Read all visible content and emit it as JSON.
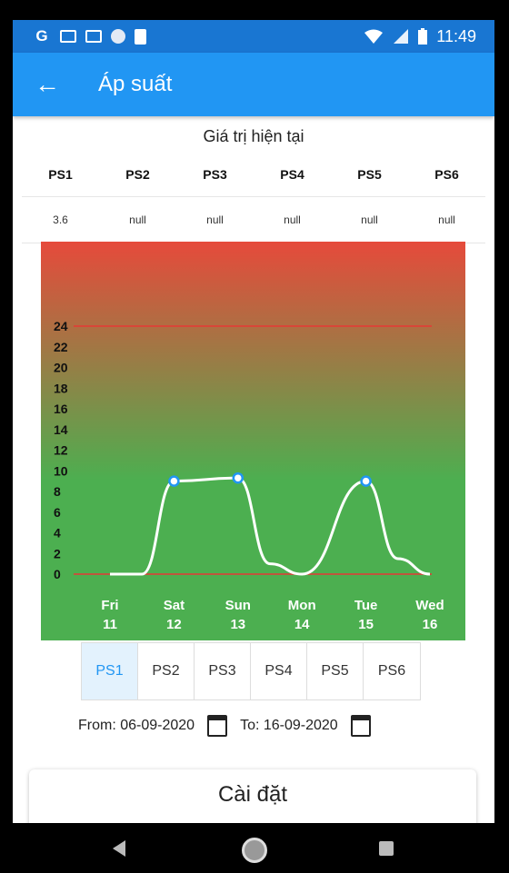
{
  "status_bar": {
    "time": "11:49",
    "icons": [
      "g-icon",
      "gmail-icon",
      "gmail-icon",
      "circle-icon",
      "sd-card-icon",
      "wifi-icon",
      "signal-icon",
      "battery-icon"
    ]
  },
  "app_bar": {
    "title": "Áp suất",
    "back_icon": "arrow-left-icon"
  },
  "current": {
    "title": "Giá trị hiện tại",
    "sensors": [
      "PS1",
      "PS2",
      "PS3",
      "PS4",
      "PS5",
      "PS6"
    ],
    "values": [
      "3.6",
      "null",
      "null",
      "null",
      "null",
      "null"
    ]
  },
  "chart_data": {
    "type": "line",
    "y_ticks": [
      "24",
      "22",
      "20",
      "18",
      "16",
      "14",
      "12",
      "10",
      "8",
      "6",
      "4",
      "2",
      "0"
    ],
    "ylim": [
      0,
      24
    ],
    "x_labels": [
      {
        "day": "Fri",
        "date": "11"
      },
      {
        "day": "Sat",
        "date": "12"
      },
      {
        "day": "Sun",
        "date": "13"
      },
      {
        "day": "Mon",
        "date": "14"
      },
      {
        "day": "Tue",
        "date": "15"
      },
      {
        "day": "Wed",
        "date": "16"
      }
    ],
    "series": [
      {
        "points": [
          [
            0,
            0
          ],
          [
            0.5,
            0
          ],
          [
            1,
            9
          ],
          [
            2,
            9.3
          ],
          [
            2.5,
            1
          ],
          [
            3,
            0
          ],
          [
            4,
            9
          ],
          [
            4.5,
            1.5
          ],
          [
            5,
            0
          ]
        ],
        "markers": [
          [
            1,
            9
          ],
          [
            2,
            9.3
          ],
          [
            4,
            9
          ]
        ]
      }
    ],
    "reference_lines": [
      24,
      0
    ],
    "colors": {
      "top": "#e64a3b",
      "bottom": "#4caf50",
      "line": "#ffffff",
      "ref": "#e53935",
      "marker": "#2196f3"
    }
  },
  "tabs": {
    "items": [
      "PS1",
      "PS2",
      "PS3",
      "PS4",
      "PS5",
      "PS6"
    ],
    "active": 0
  },
  "date_range": {
    "from_label": "From: 06-09-2020",
    "to_label": "To: 16-09-2020"
  },
  "settings": {
    "label": "Cài đặt"
  }
}
